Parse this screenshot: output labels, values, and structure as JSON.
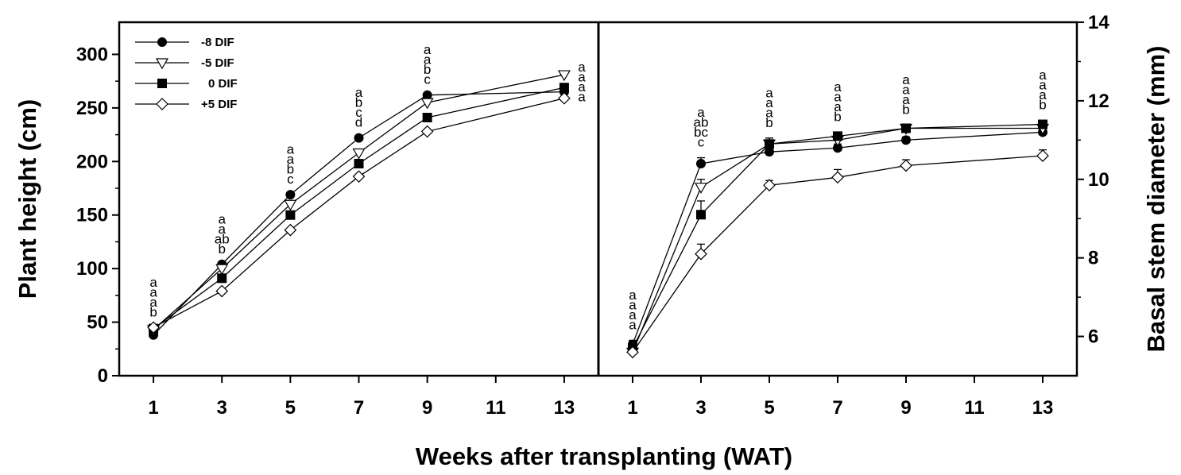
{
  "xlabel": "Weeks after transplanting (WAT)",
  "legend": [
    "-8 DIF",
    "-5 DIF",
    "0 DIF",
    "+5 DIF"
  ],
  "markers": {
    "-8 DIF": "filled-circle",
    "-5 DIF": "open-triangle-down",
    "0 DIF": "filled-square",
    "+5 DIF": "open-diamond"
  },
  "chart_data": [
    {
      "type": "line",
      "ylabel": "Plant height (cm)",
      "ylim": [
        0,
        330
      ],
      "yticks": [
        0,
        50,
        100,
        150,
        200,
        250,
        300
      ],
      "xlim": [
        0,
        14
      ],
      "xticks": [
        1,
        3,
        5,
        7,
        9,
        11,
        13
      ],
      "x": [
        1,
        3,
        5,
        7,
        9,
        13
      ],
      "series": [
        {
          "name": "-8 DIF",
          "values": [
            38,
            104,
            169,
            222,
            262,
            265
          ]
        },
        {
          "name": "-5 DIF",
          "values": [
            43,
            100,
            160,
            208,
            255,
            281
          ]
        },
        {
          "name": "0 DIF",
          "values": [
            44,
            91,
            150,
            198,
            241,
            269
          ]
        },
        {
          "name": "+5 DIF",
          "values": [
            45,
            79,
            136,
            186,
            228,
            259
          ]
        }
      ],
      "annotations": [
        {
          "x": 1,
          "labels": [
            "a",
            "a",
            "a",
            "b"
          ]
        },
        {
          "x": 3,
          "labels": [
            "a",
            "a",
            "ab",
            "b"
          ]
        },
        {
          "x": 5,
          "labels": [
            "a",
            "a",
            "b",
            "c"
          ]
        },
        {
          "x": 7,
          "labels": [
            "a",
            "b",
            "c",
            "d"
          ]
        },
        {
          "x": 9,
          "labels": [
            "a",
            "a",
            "b",
            "c"
          ]
        },
        {
          "x": 13,
          "labels": [
            "a",
            "a",
            "a",
            "a"
          ]
        }
      ],
      "legend_position": "top-left"
    },
    {
      "type": "line",
      "ylabel": "Basal stem diameter (mm)",
      "ylim": [
        5,
        14
      ],
      "yticks": [
        6,
        8,
        10,
        12,
        14
      ],
      "xlim": [
        0,
        14
      ],
      "xticks": [
        1,
        3,
        5,
        7,
        9,
        11,
        13
      ],
      "x": [
        1,
        3,
        5,
        7,
        9,
        13
      ],
      "series": [
        {
          "name": "-8 DIF",
          "values": [
            5.8,
            10.4,
            10.7,
            10.8,
            11.0,
            11.2
          ],
          "errors": [
            0.1,
            0.15,
            0.1,
            0.1,
            0.08,
            0.1
          ]
        },
        {
          "name": "-5 DIF",
          "values": [
            5.6,
            9.8,
            10.9,
            11.0,
            11.3,
            11.3
          ],
          "errors": [
            0.1,
            0.2,
            0.15,
            0.1,
            0.08,
            0.1
          ]
        },
        {
          "name": "0 DIF",
          "values": [
            5.7,
            9.1,
            10.9,
            11.1,
            11.3,
            11.4
          ],
          "errors": [
            0.1,
            0.35,
            0.15,
            0.1,
            0.08,
            0.1
          ]
        },
        {
          "name": "+5 DIF",
          "values": [
            5.6,
            8.1,
            9.85,
            10.05,
            10.35,
            10.6
          ],
          "errors": [
            0.1,
            0.25,
            0.12,
            0.2,
            0.15,
            0.15
          ]
        }
      ],
      "annotations": [
        {
          "x": 1,
          "labels": [
            "a",
            "a",
            "a",
            "a"
          ]
        },
        {
          "x": 3,
          "labels": [
            "a",
            "ab",
            "bc",
            "c"
          ]
        },
        {
          "x": 5,
          "labels": [
            "a",
            "a",
            "a",
            "b"
          ]
        },
        {
          "x": 7,
          "labels": [
            "a",
            "a",
            "a",
            "b"
          ]
        },
        {
          "x": 9,
          "labels": [
            "a",
            "a",
            "a",
            "b"
          ]
        },
        {
          "x": 13,
          "labels": [
            "a",
            "a",
            "a",
            "b"
          ]
        }
      ]
    }
  ]
}
